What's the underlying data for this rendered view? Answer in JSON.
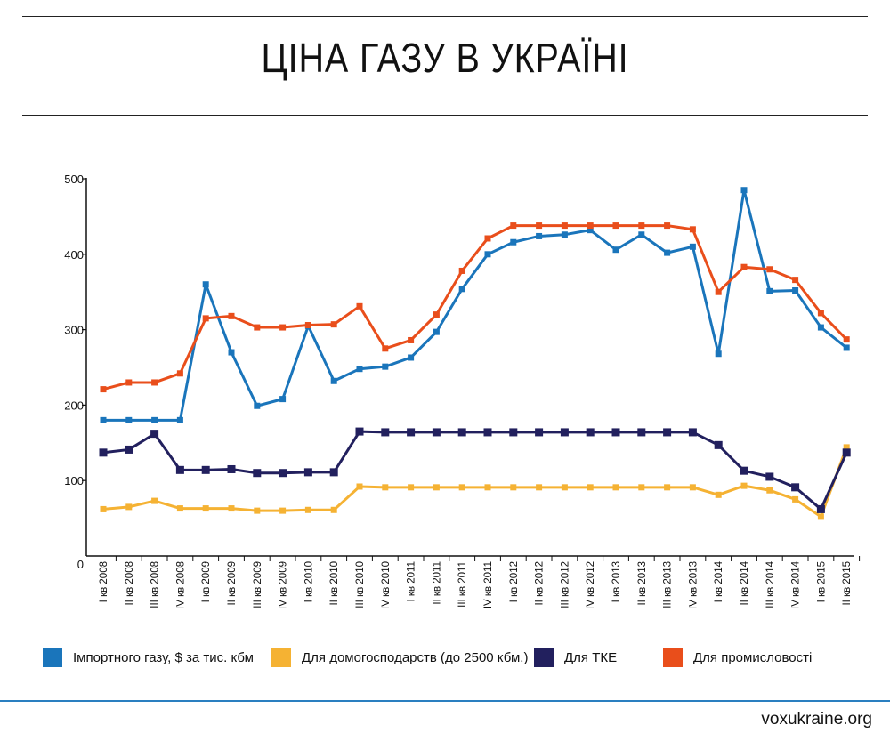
{
  "title": "ЦІНА ГАЗУ В УКРАЇНІ",
  "source": "voxukraine.org",
  "chart_data": {
    "type": "line",
    "title": "ЦІНА ГАЗУ В УКРАЇНІ",
    "xlabel": "",
    "ylabel": "",
    "ylim": [
      0,
      500
    ],
    "yticks": [
      0,
      100,
      200,
      300,
      400,
      500
    ],
    "grid": false,
    "legend_position": "bottom",
    "categories": [
      "I кв 2008",
      "II кв 2008",
      "III кв 2008",
      "IV кв 2008",
      "I кв 2009",
      "II кв 2009",
      "III кв 2009",
      "IV кв 2009",
      "I кв 2010",
      "II кв 2010",
      "III кв 2010",
      "IV кв 2010",
      "I кв 2011",
      "II кв 2011",
      "III кв 2011",
      "IV кв 2011",
      "I кв 2012",
      "II кв 2012",
      "III кв 2012",
      "IV кв 2012",
      "I кв 2013",
      "II кв 2013",
      "III кв 2013",
      "IV кв 2013",
      "I кв 2014",
      "II кв 2014",
      "III кв 2014",
      "IV кв 2014",
      "I кв 2015",
      "II кв 2015"
    ],
    "series": [
      {
        "name": "Імпортного газу, $ за тис. кбм",
        "color": "#1a75bb",
        "values": [
          180,
          180,
          180,
          180,
          360,
          270,
          199,
          208,
          305,
          232,
          248,
          251,
          263,
          297,
          354,
          400,
          416,
          424,
          426,
          432,
          406,
          426,
          402,
          410,
          268,
          485,
          351,
          352,
          303,
          276
        ]
      },
      {
        "name": "Для домогосподарств (до 2500 кбм.)",
        "color": "#f5b233",
        "values": [
          62,
          65,
          73,
          63,
          63,
          63,
          60,
          60,
          61,
          61,
          92,
          91,
          91,
          91,
          91,
          91,
          91,
          91,
          91,
          91,
          91,
          91,
          91,
          91,
          81,
          93,
          87,
          75,
          52,
          144
        ]
      },
      {
        "name": "Для ТКЕ",
        "color": "#22205e",
        "values": [
          137,
          141,
          162,
          114,
          114,
          115,
          110,
          110,
          111,
          111,
          165,
          164,
          164,
          164,
          164,
          164,
          164,
          164,
          164,
          164,
          164,
          164,
          164,
          164,
          147,
          113,
          105,
          91,
          62,
          137
        ]
      },
      {
        "name": "Для промисловості",
        "color": "#e94e1b",
        "values": [
          221,
          230,
          230,
          242,
          315,
          318,
          303,
          303,
          306,
          307,
          331,
          275,
          286,
          320,
          378,
          421,
          438,
          438,
          438,
          438,
          438,
          438,
          438,
          433,
          350,
          383,
          380,
          366,
          322,
          287
        ]
      }
    ]
  }
}
